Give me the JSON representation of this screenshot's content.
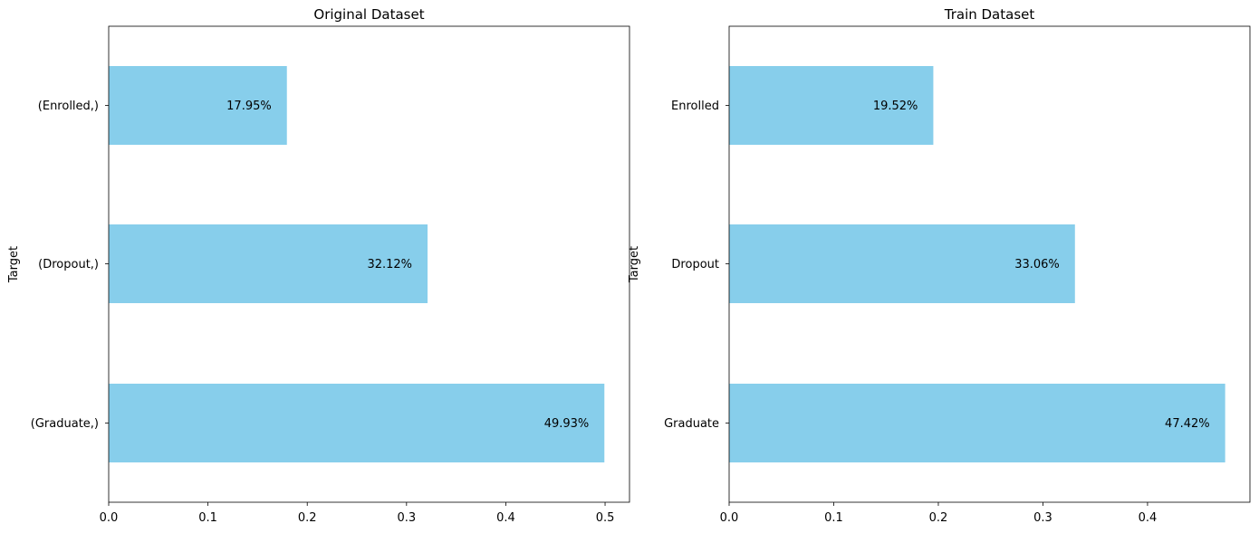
{
  "chart_data": [
    {
      "type": "bar",
      "orientation": "horizontal",
      "title": "Original Dataset",
      "xlabel": "",
      "ylabel": "Target",
      "categories": [
        "(Graduate,)",
        "(Dropout,)",
        "(Enrolled,)"
      ],
      "values": [
        0.4993,
        0.3212,
        0.1795
      ],
      "data_labels": [
        "49.93%",
        "32.12%",
        "17.95%"
      ],
      "xlim": [
        0,
        0.5246
      ],
      "xticks": [
        0.0,
        0.1,
        0.2,
        0.3,
        0.4,
        0.5
      ],
      "xtick_labels": [
        "0.0",
        "0.1",
        "0.2",
        "0.3",
        "0.4",
        "0.5"
      ],
      "color": "#87ceeb",
      "grid": false
    },
    {
      "type": "bar",
      "orientation": "horizontal",
      "title": "Train Dataset",
      "xlabel": "",
      "ylabel": "Target",
      "categories": [
        "Graduate",
        "Dropout",
        "Enrolled"
      ],
      "values": [
        0.4742,
        0.3306,
        0.1952
      ],
      "data_labels": [
        "47.42%",
        "33.06%",
        "19.52%"
      ],
      "xlim": [
        0,
        0.4979
      ],
      "xticks": [
        0.0,
        0.1,
        0.2,
        0.3,
        0.4
      ],
      "xtick_labels": [
        "0.0",
        "0.1",
        "0.2",
        "0.3",
        "0.4"
      ],
      "color": "#87ceeb",
      "grid": false
    }
  ]
}
